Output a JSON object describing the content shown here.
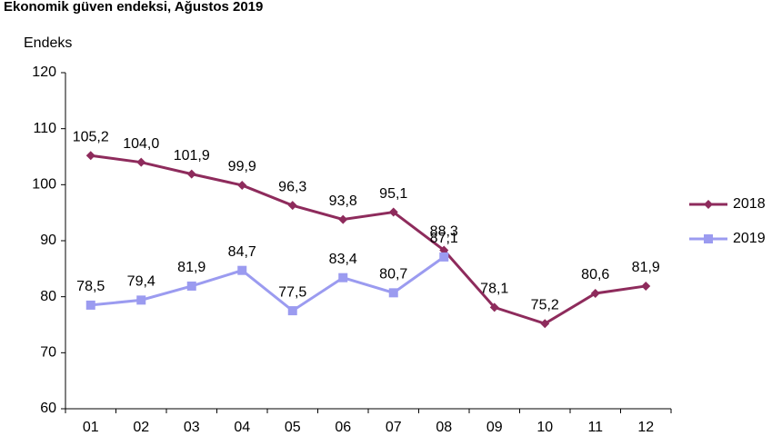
{
  "chart_data": {
    "type": "line",
    "title": "Ekonomik güven endeksi, Ağustos 2019",
    "y_label": "Endeks",
    "categories": [
      "01",
      "02",
      "03",
      "04",
      "05",
      "06",
      "07",
      "08",
      "09",
      "10",
      "11",
      "12"
    ],
    "series": [
      {
        "name": "2018",
        "color": "#8e2b5c",
        "marker": "diamond",
        "values": [
          105.2,
          104.0,
          101.9,
          99.9,
          96.3,
          93.8,
          95.1,
          88.3,
          78.1,
          75.2,
          80.6,
          81.9
        ],
        "value_labels": [
          "105,2",
          "104,0",
          "101,9",
          "99,9",
          "96,3",
          "93,8",
          "95,1",
          "88,3",
          "78,1",
          "75,2",
          "80,6",
          "81,9"
        ]
      },
      {
        "name": "2019",
        "color": "#9b9bf0",
        "marker": "square",
        "values": [
          78.5,
          79.4,
          81.9,
          84.7,
          77.5,
          83.4,
          80.7,
          87.1,
          null,
          null,
          null,
          null
        ],
        "value_labels": [
          "78,5",
          "79,4",
          "81,9",
          "84,7",
          "77,5",
          "83,4",
          "80,7",
          "87,1",
          null,
          null,
          null,
          null
        ]
      }
    ],
    "ylim": [
      60,
      120
    ],
    "yticks": [
      60,
      70,
      80,
      90,
      100,
      110,
      120
    ],
    "grid": false,
    "legend": "right"
  }
}
